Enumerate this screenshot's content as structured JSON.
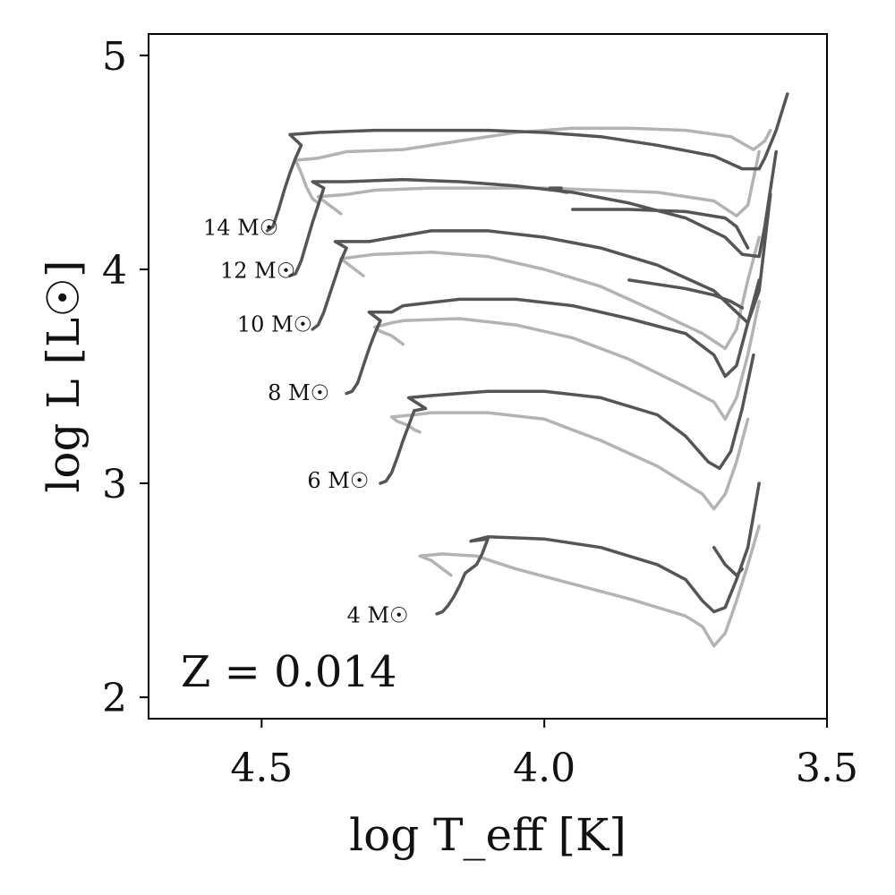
{
  "chart_data": {
    "type": "line",
    "title": "",
    "xlabel": "log T_eff [K]",
    "ylabel": "log L [L☉]",
    "xlim": [
      4.7,
      3.5
    ],
    "ylim": [
      1.9,
      5.1
    ],
    "x_inverted": true,
    "xticks": [
      4.5,
      4.0,
      3.5
    ],
    "xtick_labels": [
      "4.5",
      "4.0",
      "3.5"
    ],
    "yticks": [
      2,
      3,
      4,
      5
    ],
    "ytick_labels": [
      "2",
      "3",
      "4",
      "5"
    ],
    "grid": false,
    "legend": "none",
    "annotation": "Z = 0.014",
    "mass_labels": [
      {
        "text": "4 M☉",
        "x": 4.24,
        "y": 2.35
      },
      {
        "text": "6 M☉",
        "x": 4.31,
        "y": 2.98
      },
      {
        "text": "8 M☉",
        "x": 4.38,
        "y": 3.39
      },
      {
        "text": "10 M☉",
        "x": 4.41,
        "y": 3.71
      },
      {
        "text": "12 M☉",
        "x": 4.44,
        "y": 3.96
      },
      {
        "text": "14 M☉",
        "x": 4.47,
        "y": 4.16
      }
    ],
    "colors": {
      "dark": "#555555",
      "light": "#b3b3b3"
    },
    "series": [
      {
        "mass": 4,
        "shade": "light",
        "x": [
          4.165,
          4.17,
          4.18,
          4.19,
          4.2,
          4.21,
          4.22,
          4.18,
          4.12,
          4.05,
          3.95,
          3.85,
          3.75,
          3.72,
          3.7,
          3.68,
          3.66,
          3.64,
          3.62
        ],
        "y": [
          2.57,
          2.58,
          2.6,
          2.62,
          2.64,
          2.65,
          2.66,
          2.67,
          2.66,
          2.6,
          2.53,
          2.46,
          2.38,
          2.33,
          2.24,
          2.3,
          2.45,
          2.62,
          2.8
        ]
      },
      {
        "mass": 4,
        "shade": "dark",
        "x": [
          4.19,
          4.18,
          4.17,
          4.16,
          4.15,
          4.14,
          4.12,
          4.11,
          4.1,
          4.13,
          4.1,
          4.0,
          3.9,
          3.8,
          3.75,
          3.72,
          3.7,
          3.68,
          3.66,
          3.64,
          3.62
        ],
        "y": [
          2.39,
          2.4,
          2.43,
          2.47,
          2.52,
          2.58,
          2.62,
          2.67,
          2.74,
          2.73,
          2.75,
          2.74,
          2.7,
          2.62,
          2.55,
          2.45,
          2.4,
          2.42,
          2.55,
          2.7,
          3.0
        ]
      },
      {
        "mass": 4,
        "shade": "dark",
        "x": [
          3.7,
          3.68,
          3.66,
          3.65
        ],
        "y": [
          2.7,
          2.62,
          2.57,
          2.6
        ]
      },
      {
        "mass": 6,
        "shade": "light",
        "x": [
          4.22,
          4.23,
          4.24,
          4.26,
          4.27,
          4.23,
          4.2,
          4.1,
          4.0,
          3.9,
          3.8,
          3.72,
          3.7,
          3.68,
          3.66,
          3.64
        ],
        "y": [
          3.24,
          3.25,
          3.27,
          3.29,
          3.31,
          3.32,
          3.33,
          3.33,
          3.3,
          3.2,
          3.08,
          2.95,
          2.88,
          2.95,
          3.1,
          3.3
        ]
      },
      {
        "mass": 6,
        "shade": "dark",
        "x": [
          4.29,
          4.28,
          4.27,
          4.26,
          4.25,
          4.24,
          4.23,
          4.21,
          4.24,
          4.2,
          4.1,
          4.0,
          3.9,
          3.8,
          3.75,
          3.71,
          3.69,
          3.67,
          3.65,
          3.63
        ],
        "y": [
          3.0,
          3.01,
          3.05,
          3.12,
          3.2,
          3.27,
          3.34,
          3.35,
          3.4,
          3.41,
          3.43,
          3.43,
          3.4,
          3.32,
          3.22,
          3.1,
          3.07,
          3.15,
          3.35,
          3.6
        ]
      },
      {
        "mass": 8,
        "shade": "light",
        "x": [
          4.25,
          4.26,
          4.27,
          4.29,
          4.3,
          4.27,
          4.25,
          4.15,
          4.05,
          3.95,
          3.85,
          3.75,
          3.7,
          3.68,
          3.66,
          3.64,
          3.62
        ],
        "y": [
          3.65,
          3.67,
          3.69,
          3.71,
          3.73,
          3.75,
          3.76,
          3.77,
          3.74,
          3.68,
          3.58,
          3.45,
          3.38,
          3.3,
          3.4,
          3.6,
          3.85
        ]
      },
      {
        "mass": 8,
        "shade": "dark",
        "x": [
          4.35,
          4.34,
          4.33,
          4.32,
          4.31,
          4.3,
          4.29,
          4.31,
          4.27,
          4.25,
          4.15,
          4.05,
          3.95,
          3.85,
          3.75,
          3.7,
          3.68,
          3.66,
          3.64,
          3.62
        ],
        "y": [
          3.42,
          3.43,
          3.47,
          3.55,
          3.63,
          3.7,
          3.76,
          3.8,
          3.8,
          3.83,
          3.86,
          3.86,
          3.83,
          3.77,
          3.7,
          3.6,
          3.5,
          3.55,
          3.75,
          3.95
        ]
      },
      {
        "mass": 10,
        "shade": "light",
        "x": [
          4.32,
          4.33,
          4.34,
          4.35,
          4.36,
          4.3,
          4.2,
          4.1,
          4.0,
          3.9,
          3.8,
          3.72,
          3.68,
          3.66,
          3.64,
          3.62
        ],
        "y": [
          3.97,
          3.99,
          4.01,
          4.03,
          4.05,
          4.07,
          4.08,
          4.06,
          4.0,
          3.92,
          3.8,
          3.7,
          3.63,
          3.72,
          3.95,
          4.15
        ]
      },
      {
        "mass": 10,
        "shade": "dark",
        "x": [
          4.41,
          4.4,
          4.39,
          4.38,
          4.37,
          4.36,
          4.35,
          4.37,
          4.31,
          4.2,
          4.1,
          4.0,
          3.9,
          3.8,
          3.7,
          3.66,
          3.64,
          3.62,
          3.6
        ],
        "y": [
          3.72,
          3.74,
          3.8,
          3.88,
          3.96,
          4.04,
          4.1,
          4.13,
          4.13,
          4.18,
          4.18,
          4.15,
          4.1,
          4.02,
          3.9,
          3.8,
          3.75,
          3.9,
          4.35
        ]
      },
      {
        "mass": 10,
        "shade": "dark",
        "x": [
          3.85,
          3.8,
          3.75,
          3.7,
          3.67,
          3.65
        ],
        "y": [
          3.95,
          3.93,
          3.91,
          3.88,
          3.85,
          3.82
        ]
      },
      {
        "mass": 12,
        "shade": "light",
        "x": [
          4.36,
          4.37,
          4.38,
          4.39,
          4.4,
          4.35,
          4.3,
          4.2,
          4.1,
          4.0,
          3.9,
          3.8,
          3.7,
          3.66,
          3.64,
          3.62
        ],
        "y": [
          4.26,
          4.28,
          4.3,
          4.32,
          4.34,
          4.35,
          4.37,
          4.38,
          4.38,
          4.38,
          4.37,
          4.36,
          4.32,
          4.25,
          4.3,
          4.55
        ]
      },
      {
        "mass": 12,
        "shade": "dark",
        "x": [
          4.45,
          4.44,
          4.43,
          4.42,
          4.41,
          4.4,
          4.39,
          4.41,
          4.35,
          4.25,
          4.15,
          4.05,
          3.95,
          3.85,
          3.75,
          3.68,
          3.65,
          3.62,
          3.61,
          3.59
        ],
        "y": [
          3.97,
          3.98,
          4.04,
          4.13,
          4.22,
          4.3,
          4.38,
          4.41,
          4.41,
          4.42,
          4.41,
          4.39,
          4.36,
          4.31,
          4.24,
          4.15,
          4.07,
          4.06,
          4.2,
          4.55
        ]
      },
      {
        "mass": 12,
        "shade": "dark",
        "x": [
          3.95,
          3.85,
          3.75,
          3.68,
          3.66,
          3.64
        ],
        "y": [
          4.28,
          4.28,
          4.27,
          4.24,
          4.2,
          4.1
        ]
      },
      {
        "mass": 14,
        "shade": "light",
        "x": [
          4.4,
          4.41,
          4.42,
          4.43,
          4.44,
          4.4,
          4.35,
          4.25,
          4.15,
          4.05,
          3.95,
          3.85,
          3.75,
          3.67,
          3.63,
          3.61,
          3.6
        ],
        "y": [
          4.31,
          4.33,
          4.38,
          4.45,
          4.51,
          4.52,
          4.55,
          4.56,
          4.6,
          4.64,
          4.66,
          4.66,
          4.65,
          4.62,
          4.56,
          4.6,
          4.65
        ]
      },
      {
        "mass": 14,
        "shade": "dark",
        "x": [
          4.49,
          4.48,
          4.47,
          4.46,
          4.45,
          4.44,
          4.43,
          4.45,
          4.4,
          4.3,
          4.2,
          4.1,
          4.0,
          3.9,
          3.8,
          3.7,
          3.65,
          3.62,
          3.61,
          3.59,
          3.57
        ],
        "y": [
          4.18,
          4.2,
          4.28,
          4.37,
          4.45,
          4.52,
          4.58,
          4.63,
          4.64,
          4.65,
          4.65,
          4.65,
          4.64,
          4.62,
          4.58,
          4.53,
          4.47,
          4.47,
          4.52,
          4.65,
          4.82
        ]
      },
      {
        "mass": 14,
        "shade": "dark",
        "x": [
          3.97,
          3.99,
          3.98,
          3.96
        ],
        "y": [
          4.38,
          4.38,
          4.37,
          4.36
        ]
      }
    ]
  }
}
